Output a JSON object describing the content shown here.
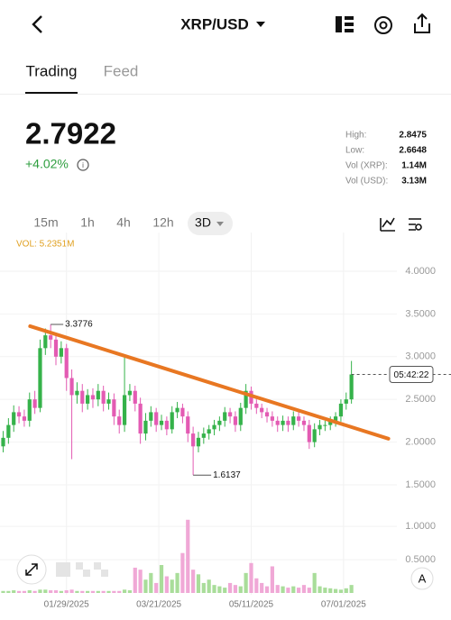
{
  "header": {
    "title": "XRP/USD"
  },
  "tabs": [
    "Trading",
    "Feed"
  ],
  "price": {
    "last": "2.7922",
    "change": "+4.02%"
  },
  "stats": [
    {
      "label": "High:",
      "value": "2.8475"
    },
    {
      "label": "Low:",
      "value": "2.6648"
    },
    {
      "label": "Vol (XRP):",
      "value": "1.14M"
    },
    {
      "label": "Vol (USD):",
      "value": "3.13M"
    }
  ],
  "timeframes": [
    "15m",
    "1h",
    "4h",
    "12h",
    "3D"
  ],
  "chart_data": {
    "type": "candlestick",
    "volume_label": "VOL: 5.2351M",
    "countdown": "05:42:22",
    "up_color": "#35b24a",
    "down_color": "#e35bb3",
    "up_volume_color": "#a9dd9a",
    "down_volume_color": "#f0a8d6",
    "open": [
      1.95,
      2.05,
      2.2,
      2.35,
      2.3,
      2.25,
      2.5,
      2.4,
      3.1,
      3.25,
      3.2,
      3.0,
      3.1,
      2.75,
      2.55,
      2.6,
      2.45,
      2.55,
      2.5,
      2.6,
      2.45,
      2.5,
      2.3,
      2.2,
      2.55,
      2.6,
      2.45,
      2.1,
      2.25,
      2.35,
      2.2,
      2.25,
      2.15,
      2.35,
      2.4,
      2.3,
      2.1,
      1.95,
      2.05,
      2.1,
      2.15,
      2.2,
      2.25,
      2.35,
      2.3,
      2.2,
      2.4,
      2.6,
      2.45,
      2.4,
      2.35,
      2.3,
      2.25,
      2.2,
      2.25,
      2.2,
      2.3,
      2.25,
      2.2,
      2.0,
      2.15,
      2.2,
      2.2,
      2.25,
      2.3,
      2.45,
      2.5
    ],
    "high": [
      2.13,
      2.28,
      2.43,
      2.42,
      2.38,
      2.58,
      2.6,
      3.2,
      3.33,
      3.3776,
      3.28,
      3.18,
      3.15,
      2.85,
      2.7,
      2.68,
      2.62,
      2.63,
      2.68,
      2.66,
      2.58,
      2.57,
      2.38,
      3.0,
      2.68,
      2.66,
      2.52,
      2.34,
      2.42,
      2.4,
      2.32,
      2.3,
      2.42,
      2.47,
      2.45,
      2.36,
      2.18,
      2.12,
      2.17,
      2.2,
      2.26,
      2.3,
      2.41,
      2.4,
      2.36,
      2.46,
      2.68,
      2.65,
      2.5,
      2.45,
      2.4,
      2.36,
      2.3,
      2.31,
      2.3,
      2.36,
      2.35,
      2.3,
      2.26,
      2.22,
      2.26,
      2.25,
      2.3,
      2.35,
      2.5,
      2.58,
      2.95
    ],
    "low": [
      1.88,
      1.98,
      2.12,
      2.22,
      2.18,
      2.18,
      2.33,
      2.35,
      3.02,
      3.1,
      2.9,
      2.92,
      2.6,
      1.8,
      2.45,
      2.35,
      2.38,
      2.4,
      2.42,
      2.36,
      2.38,
      2.2,
      2.1,
      2.12,
      2.48,
      2.36,
      1.98,
      2.02,
      2.18,
      2.12,
      2.14,
      2.08,
      2.1,
      2.28,
      2.22,
      2.0,
      1.6137,
      1.88,
      1.98,
      2.03,
      2.08,
      2.13,
      2.18,
      2.22,
      2.12,
      2.13,
      2.33,
      2.38,
      2.33,
      2.28,
      2.23,
      2.18,
      2.12,
      2.13,
      2.12,
      2.14,
      2.18,
      2.13,
      1.92,
      1.94,
      2.08,
      2.13,
      2.14,
      2.18,
      2.24,
      2.38,
      2.45
    ],
    "close": [
      2.05,
      2.2,
      2.35,
      2.3,
      2.25,
      2.5,
      2.4,
      3.1,
      3.25,
      3.2,
      3.0,
      3.1,
      2.75,
      2.55,
      2.6,
      2.45,
      2.55,
      2.5,
      2.6,
      2.45,
      2.5,
      2.3,
      2.2,
      2.55,
      2.6,
      2.45,
      2.1,
      2.25,
      2.35,
      2.2,
      2.25,
      2.15,
      2.35,
      2.4,
      2.3,
      2.1,
      1.95,
      2.05,
      2.1,
      2.15,
      2.2,
      2.25,
      2.35,
      2.3,
      2.2,
      2.4,
      2.6,
      2.45,
      2.4,
      2.35,
      2.3,
      2.25,
      2.2,
      2.25,
      2.2,
      2.3,
      2.25,
      2.2,
      2.0,
      2.15,
      2.2,
      2.2,
      2.25,
      2.3,
      2.45,
      2.5,
      2.7922
    ],
    "volume": [
      0.03,
      0.03,
      0.04,
      0.03,
      0.03,
      0.04,
      0.03,
      0.05,
      0.05,
      0.04,
      0.04,
      0.03,
      0.04,
      0.05,
      0.03,
      0.03,
      0.03,
      0.03,
      0.03,
      0.03,
      0.03,
      0.03,
      0.03,
      0.05,
      0.04,
      0.38,
      0.35,
      0.2,
      0.3,
      0.15,
      0.42,
      0.25,
      0.2,
      0.3,
      0.6,
      1.1,
      0.35,
      0.28,
      0.15,
      0.2,
      0.12,
      0.1,
      0.08,
      0.15,
      0.12,
      0.1,
      0.3,
      0.45,
      0.22,
      0.15,
      0.1,
      0.4,
      0.12,
      0.1,
      0.08,
      0.1,
      0.08,
      0.12,
      0.08,
      0.3,
      0.1,
      0.08,
      0.07,
      0.06,
      0.05,
      0.07,
      0.12
    ],
    "xlim": [
      -0.6,
      72.9
    ],
    "xticks": [
      {
        "value": 12,
        "label": "01/29/2025"
      },
      {
        "value": 29.5,
        "label": "03/21/2025"
      },
      {
        "value": 47,
        "label": "05/11/2025"
      },
      {
        "value": 64.5,
        "label": "07/01/2025"
      }
    ],
    "ylim": [
      1.2,
      4.4
    ],
    "yticks": [
      {
        "value": 1.5,
        "label": "1.5000"
      },
      {
        "value": 2,
        "label": "2.0000"
      },
      {
        "value": 2.5,
        "label": "2.5000"
      },
      {
        "value": 3,
        "label": "3.0000"
      },
      {
        "value": 3.5,
        "label": "3.5000"
      },
      {
        "value": 4,
        "label": "4.0000"
      }
    ],
    "volume_ylim": [
      0,
      1.3
    ],
    "volume_yticks": [
      {
        "value": 0.5,
        "label": "0.5000"
      },
      {
        "value": 1,
        "label": "1.0000"
      }
    ],
    "trendline": {
      "x": [
        5.1,
        73
      ],
      "y": [
        3.357,
        2.04
      ],
      "color": "#e87722"
    },
    "grid": true
  }
}
